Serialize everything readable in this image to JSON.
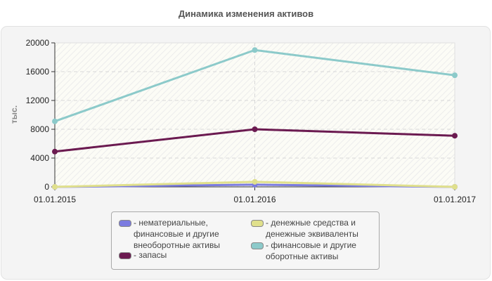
{
  "title": "Динамика изменения активов",
  "chart_data": {
    "type": "line",
    "title": "Динамика изменения активов",
    "xlabel": "",
    "ylabel": "тыс.",
    "ylim": [
      0,
      20000
    ],
    "yticks": [
      0,
      4000,
      8000,
      12000,
      16000,
      20000
    ],
    "grid": true,
    "legend_position": "bottom",
    "categories": [
      "01.01.2015",
      "01.01.2016",
      "01.01.2017"
    ],
    "series": [
      {
        "name": "нематериальные, финансовые и другие внеоборотные активы",
        "color": "#7b7be0",
        "values": [
          0,
          300,
          0
        ]
      },
      {
        "name": "запасы",
        "color": "#6b1a50",
        "values": [
          4900,
          8000,
          7100
        ]
      },
      {
        "name": "денежные средства и денежные эквиваленты",
        "color": "#e0e08c",
        "values": [
          0,
          700,
          0
        ]
      },
      {
        "name": "финансовые и другие оборотные активы",
        "color": "#8ccaca",
        "values": [
          9100,
          19000,
          15500
        ]
      }
    ]
  },
  "axis": {
    "y_label": "тыс.",
    "y_ticks": [
      "0",
      "4000",
      "8000",
      "12000",
      "16000",
      "20000"
    ],
    "x_ticks": [
      "01.01.2015",
      "01.01.2016",
      "01.01.2017"
    ]
  },
  "legend": {
    "items": [
      {
        "label": "- нематериальные,\nфинансовые и другие\nвнеоборотные активы",
        "color": "#7b7be0"
      },
      {
        "label": "- запасы",
        "color": "#6b1a50"
      },
      {
        "label": "- денежные средства и\nденежные эквиваленты",
        "color": "#e0e08c"
      },
      {
        "label": "- финансовые и другие\nоборотные активы",
        "color": "#8ccaca"
      }
    ]
  }
}
